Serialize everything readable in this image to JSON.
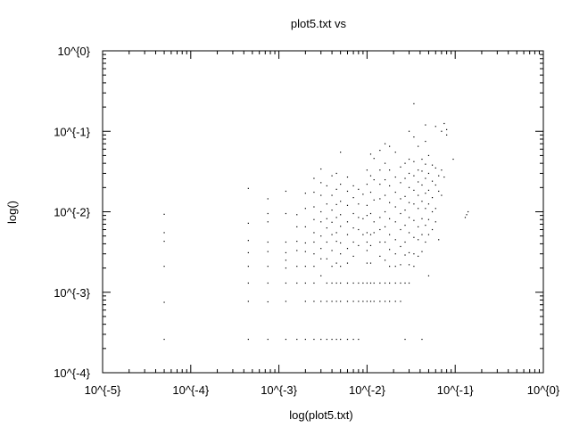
{
  "chart_data": {
    "type": "scatter",
    "title": "plot5.txt vs",
    "xlabel": "log(plot5.txt)",
    "ylabel": "log()",
    "xscale": "log",
    "yscale": "log",
    "xlim": [
      1e-05,
      1
    ],
    "ylim": [
      0.0001,
      1
    ],
    "x_ticks": [
      {
        "value": 1e-05,
        "label": "10^{-5}"
      },
      {
        "value": 0.0001,
        "label": "10^{-4}"
      },
      {
        "value": 0.001,
        "label": "10^{-3}"
      },
      {
        "value": 0.01,
        "label": "10^{-2}"
      },
      {
        "value": 0.1,
        "label": "10^{-1}"
      },
      {
        "value": 1,
        "label": "10^{0}"
      }
    ],
    "y_ticks": [
      {
        "value": 0.0001,
        "label": "10^{-4}"
      },
      {
        "value": 0.001,
        "label": "10^{-3}"
      },
      {
        "value": 0.01,
        "label": "10^{-2}"
      },
      {
        "value": 0.1,
        "label": "10^{-1}"
      },
      {
        "value": 1,
        "label": "10^{0}"
      }
    ],
    "grid": false,
    "marker_color": "#000000",
    "points": [
      [
        5e-05,
        0.0093
      ],
      [
        5e-05,
        0.0055
      ],
      [
        5e-05,
        0.0043
      ],
      [
        5e-05,
        0.0021
      ],
      [
        5e-05,
        0.00075
      ],
      [
        5e-05,
        0.00026
      ],
      [
        0.00045,
        0.0195
      ],
      [
        0.00045,
        0.0072
      ],
      [
        0.00045,
        0.0044
      ],
      [
        0.00045,
        0.0031
      ],
      [
        0.00045,
        0.0021
      ],
      [
        0.00045,
        0.0013
      ],
      [
        0.00045,
        0.00077
      ],
      [
        0.00045,
        0.00026
      ],
      [
        0.00075,
        0.0145
      ],
      [
        0.00075,
        0.0095
      ],
      [
        0.00075,
        0.0075
      ],
      [
        0.00075,
        0.0042
      ],
      [
        0.00075,
        0.0032
      ],
      [
        0.00075,
        0.0021
      ],
      [
        0.00075,
        0.0013
      ],
      [
        0.00075,
        0.00076
      ],
      [
        0.00075,
        0.00026
      ],
      [
        0.0012,
        0.018
      ],
      [
        0.0012,
        0.0095
      ],
      [
        0.0012,
        0.0042
      ],
      [
        0.0012,
        0.0031
      ],
      [
        0.0012,
        0.0025
      ],
      [
        0.0012,
        0.002
      ],
      [
        0.0012,
        0.0013
      ],
      [
        0.0012,
        0.00077
      ],
      [
        0.0012,
        0.00026
      ],
      [
        0.0016,
        0.0092
      ],
      [
        0.0016,
        0.0065
      ],
      [
        0.0016,
        0.0043
      ],
      [
        0.0016,
        0.0033
      ],
      [
        0.0016,
        0.0021
      ],
      [
        0.0016,
        0.0013
      ],
      [
        0.0016,
        0.00026
      ],
      [
        0.002,
        0.017
      ],
      [
        0.002,
        0.011
      ],
      [
        0.002,
        0.0065
      ],
      [
        0.002,
        0.0041
      ],
      [
        0.002,
        0.0032
      ],
      [
        0.002,
        0.0021
      ],
      [
        0.002,
        0.0013
      ],
      [
        0.002,
        0.00077
      ],
      [
        0.002,
        0.00026
      ],
      [
        0.0025,
        0.026
      ],
      [
        0.0025,
        0.0175
      ],
      [
        0.0025,
        0.0115
      ],
      [
        0.0025,
        0.008
      ],
      [
        0.0025,
        0.0055
      ],
      [
        0.0025,
        0.0042
      ],
      [
        0.0025,
        0.003
      ],
      [
        0.0025,
        0.0021
      ],
      [
        0.0025,
        0.0013
      ],
      [
        0.0025,
        0.00077
      ],
      [
        0.0025,
        0.00026
      ],
      [
        0.003,
        0.034
      ],
      [
        0.003,
        0.023
      ],
      [
        0.003,
        0.016
      ],
      [
        0.003,
        0.01
      ],
      [
        0.003,
        0.0075
      ],
      [
        0.003,
        0.005
      ],
      [
        0.003,
        0.0035
      ],
      [
        0.003,
        0.0026
      ],
      [
        0.003,
        0.0016
      ],
      [
        0.003,
        0.00077
      ],
      [
        0.003,
        0.00026
      ],
      [
        0.0035,
        0.021
      ],
      [
        0.0035,
        0.0125
      ],
      [
        0.0035,
        0.0082
      ],
      [
        0.0035,
        0.0063
      ],
      [
        0.0035,
        0.0042
      ],
      [
        0.0035,
        0.0026
      ],
      [
        0.0035,
        0.0013
      ],
      [
        0.0035,
        0.00077
      ],
      [
        0.0035,
        0.00026
      ],
      [
        0.004,
        0.028
      ],
      [
        0.004,
        0.016
      ],
      [
        0.004,
        0.0105
      ],
      [
        0.004,
        0.0074
      ],
      [
        0.004,
        0.0052
      ],
      [
        0.004,
        0.0033
      ],
      [
        0.004,
        0.0021
      ],
      [
        0.004,
        0.0013
      ],
      [
        0.004,
        0.00077
      ],
      [
        0.004,
        0.00026
      ],
      [
        0.0045,
        0.03
      ],
      [
        0.0045,
        0.019
      ],
      [
        0.0045,
        0.0123
      ],
      [
        0.0045,
        0.0085
      ],
      [
        0.0045,
        0.0055
      ],
      [
        0.0045,
        0.0043
      ],
      [
        0.0045,
        0.0023
      ],
      [
        0.0045,
        0.0013
      ],
      [
        0.0045,
        0.00077
      ],
      [
        0.0045,
        0.00026
      ],
      [
        0.005,
        0.055
      ],
      [
        0.005,
        0.022
      ],
      [
        0.005,
        0.0135
      ],
      [
        0.005,
        0.0092
      ],
      [
        0.005,
        0.0066
      ],
      [
        0.005,
        0.0041
      ],
      [
        0.005,
        0.003
      ],
      [
        0.005,
        0.0021
      ],
      [
        0.005,
        0.0013
      ],
      [
        0.005,
        0.00077
      ],
      [
        0.005,
        0.00026
      ],
      [
        0.006,
        0.027
      ],
      [
        0.006,
        0.018
      ],
      [
        0.006,
        0.012
      ],
      [
        0.006,
        0.0075
      ],
      [
        0.006,
        0.0052
      ],
      [
        0.006,
        0.0035
      ],
      [
        0.006,
        0.0023
      ],
      [
        0.006,
        0.0013
      ],
      [
        0.006,
        0.00077
      ],
      [
        0.006,
        0.00026
      ],
      [
        0.007,
        0.021
      ],
      [
        0.007,
        0.015
      ],
      [
        0.007,
        0.0095
      ],
      [
        0.007,
        0.0063
      ],
      [
        0.007,
        0.0042
      ],
      [
        0.007,
        0.0028
      ],
      [
        0.007,
        0.0013
      ],
      [
        0.007,
        0.00077
      ],
      [
        0.007,
        0.00026
      ],
      [
        0.008,
        0.019
      ],
      [
        0.008,
        0.0125
      ],
      [
        0.008,
        0.0085
      ],
      [
        0.008,
        0.006
      ],
      [
        0.008,
        0.0038
      ],
      [
        0.008,
        0.0013
      ],
      [
        0.008,
        0.00077
      ],
      [
        0.008,
        0.00026
      ],
      [
        0.009,
        0.0165
      ],
      [
        0.009,
        0.0082
      ],
      [
        0.009,
        0.0052
      ],
      [
        0.009,
        0.0013
      ],
      [
        0.009,
        0.00077
      ],
      [
        0.01,
        0.033
      ],
      [
        0.01,
        0.022
      ],
      [
        0.01,
        0.012
      ],
      [
        0.01,
        0.009
      ],
      [
        0.01,
        0.0055
      ],
      [
        0.01,
        0.0042
      ],
      [
        0.01,
        0.0033
      ],
      [
        0.01,
        0.0023
      ],
      [
        0.01,
        0.0013
      ],
      [
        0.01,
        0.00077
      ],
      [
        0.011,
        0.052
      ],
      [
        0.011,
        0.028
      ],
      [
        0.011,
        0.0175
      ],
      [
        0.011,
        0.0095
      ],
      [
        0.011,
        0.0052
      ],
      [
        0.011,
        0.0038
      ],
      [
        0.011,
        0.0023
      ],
      [
        0.011,
        0.0013
      ],
      [
        0.011,
        0.00077
      ],
      [
        0.012,
        0.046
      ],
      [
        0.012,
        0.025
      ],
      [
        0.012,
        0.014
      ],
      [
        0.012,
        0.0075
      ],
      [
        0.012,
        0.0055
      ],
      [
        0.012,
        0.0013
      ],
      [
        0.012,
        0.00077
      ],
      [
        0.014,
        0.058
      ],
      [
        0.014,
        0.033
      ],
      [
        0.014,
        0.022
      ],
      [
        0.014,
        0.0145
      ],
      [
        0.014,
        0.0085
      ],
      [
        0.014,
        0.006
      ],
      [
        0.014,
        0.0042
      ],
      [
        0.014,
        0.0028
      ],
      [
        0.014,
        0.0013
      ],
      [
        0.014,
        0.00077
      ],
      [
        0.016,
        0.07
      ],
      [
        0.016,
        0.04
      ],
      [
        0.016,
        0.025
      ],
      [
        0.016,
        0.016
      ],
      [
        0.016,
        0.01
      ],
      [
        0.016,
        0.0065
      ],
      [
        0.016,
        0.0042
      ],
      [
        0.016,
        0.0025
      ],
      [
        0.016,
        0.0013
      ],
      [
        0.016,
        0.00077
      ],
      [
        0.018,
        0.065
      ],
      [
        0.018,
        0.033
      ],
      [
        0.018,
        0.021
      ],
      [
        0.018,
        0.013
      ],
      [
        0.018,
        0.0082
      ],
      [
        0.018,
        0.0052
      ],
      [
        0.018,
        0.0034
      ],
      [
        0.018,
        0.0021
      ],
      [
        0.018,
        0.0013
      ],
      [
        0.018,
        0.00077
      ],
      [
        0.021,
        0.055
      ],
      [
        0.021,
        0.027
      ],
      [
        0.021,
        0.0175
      ],
      [
        0.021,
        0.0115
      ],
      [
        0.021,
        0.0075
      ],
      [
        0.021,
        0.0045
      ],
      [
        0.021,
        0.003
      ],
      [
        0.021,
        0.0021
      ],
      [
        0.021,
        0.0013
      ],
      [
        0.021,
        0.00077
      ],
      [
        0.024,
        0.036
      ],
      [
        0.024,
        0.023
      ],
      [
        0.024,
        0.0145
      ],
      [
        0.024,
        0.0095
      ],
      [
        0.024,
        0.006
      ],
      [
        0.024,
        0.0037
      ],
      [
        0.024,
        0.0022
      ],
      [
        0.024,
        0.0013
      ],
      [
        0.024,
        0.00077
      ],
      [
        0.027,
        0.04
      ],
      [
        0.027,
        0.026
      ],
      [
        0.027,
        0.0155
      ],
      [
        0.027,
        0.0105
      ],
      [
        0.027,
        0.0068
      ],
      [
        0.027,
        0.0042
      ],
      [
        0.027,
        0.0029
      ],
      [
        0.027,
        0.0013
      ],
      [
        0.027,
        0.00026
      ],
      [
        0.03,
        0.1
      ],
      [
        0.03,
        0.045
      ],
      [
        0.03,
        0.03
      ],
      [
        0.03,
        0.02
      ],
      [
        0.03,
        0.013
      ],
      [
        0.03,
        0.0085
      ],
      [
        0.03,
        0.0055
      ],
      [
        0.03,
        0.0031
      ],
      [
        0.03,
        0.0022
      ],
      [
        0.03,
        0.0013
      ],
      [
        0.034,
        0.22
      ],
      [
        0.034,
        0.085
      ],
      [
        0.034,
        0.042
      ],
      [
        0.034,
        0.028
      ],
      [
        0.034,
        0.0185
      ],
      [
        0.034,
        0.0125
      ],
      [
        0.034,
        0.0078
      ],
      [
        0.034,
        0.0048
      ],
      [
        0.034,
        0.003
      ],
      [
        0.034,
        0.0021
      ],
      [
        0.038,
        0.065
      ],
      [
        0.038,
        0.033
      ],
      [
        0.038,
        0.0235
      ],
      [
        0.038,
        0.016
      ],
      [
        0.038,
        0.011
      ],
      [
        0.038,
        0.0065
      ],
      [
        0.038,
        0.0045
      ],
      [
        0.038,
        0.0028
      ],
      [
        0.042,
        0.045
      ],
      [
        0.042,
        0.032
      ],
      [
        0.042,
        0.0215
      ],
      [
        0.042,
        0.0135
      ],
      [
        0.042,
        0.0082
      ],
      [
        0.042,
        0.0052
      ],
      [
        0.042,
        0.0032
      ],
      [
        0.042,
        0.00026
      ],
      [
        0.046,
        0.12
      ],
      [
        0.046,
        0.075
      ],
      [
        0.046,
        0.039
      ],
      [
        0.046,
        0.026
      ],
      [
        0.046,
        0.017
      ],
      [
        0.046,
        0.011
      ],
      [
        0.046,
        0.0068
      ],
      [
        0.046,
        0.0042
      ],
      [
        0.05,
        0.05
      ],
      [
        0.05,
        0.03
      ],
      [
        0.05,
        0.0185
      ],
      [
        0.05,
        0.0125
      ],
      [
        0.05,
        0.008
      ],
      [
        0.05,
        0.0052
      ],
      [
        0.05,
        0.0016
      ],
      [
        0.055,
        0.038
      ],
      [
        0.055,
        0.024
      ],
      [
        0.055,
        0.015
      ],
      [
        0.055,
        0.01
      ],
      [
        0.055,
        0.006
      ],
      [
        0.06,
        0.115
      ],
      [
        0.06,
        0.035
      ],
      [
        0.06,
        0.0215
      ],
      [
        0.06,
        0.011
      ],
      [
        0.06,
        0.0075
      ],
      [
        0.065,
        0.028
      ],
      [
        0.065,
        0.018
      ],
      [
        0.065,
        0.0045
      ],
      [
        0.07,
        0.1
      ],
      [
        0.07,
        0.033
      ],
      [
        0.07,
        0.016
      ],
      [
        0.075,
        0.125
      ],
      [
        0.075,
        0.027
      ],
      [
        0.08,
        0.105
      ],
      [
        0.08,
        0.09
      ],
      [
        0.095,
        0.045
      ],
      [
        0.13,
        0.0085
      ],
      [
        0.135,
        0.0092
      ],
      [
        0.14,
        0.01
      ]
    ]
  }
}
